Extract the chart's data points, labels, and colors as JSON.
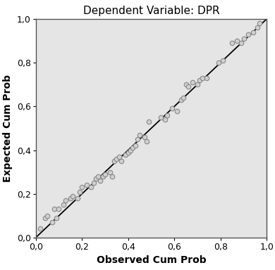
{
  "title": "Dependent Variable: DPR",
  "xlabel": "Observed Cum Prob",
  "ylabel": "Expected Cum Prob",
  "xlim": [
    0.0,
    1.0
  ],
  "ylim": [
    0.0,
    1.0
  ],
  "xticks": [
    0.0,
    0.2,
    0.4,
    0.6,
    0.8,
    1.0
  ],
  "yticks": [
    0.0,
    0.2,
    0.4,
    0.6,
    0.8,
    1.0
  ],
  "plot_bg_color": "#e5e5e5",
  "fig_bg_color": "#ffffff",
  "line_color": "#000000",
  "marker_facecolor": "#d0d0d0",
  "marker_edgecolor": "#888888",
  "spine_color": "#555555",
  "scatter_x": [
    0.02,
    0.04,
    0.05,
    0.07,
    0.08,
    0.09,
    0.1,
    0.12,
    0.13,
    0.15,
    0.16,
    0.18,
    0.19,
    0.2,
    0.22,
    0.24,
    0.25,
    0.26,
    0.27,
    0.28,
    0.29,
    0.3,
    0.32,
    0.33,
    0.34,
    0.35,
    0.36,
    0.37,
    0.39,
    0.4,
    0.41,
    0.42,
    0.43,
    0.44,
    0.45,
    0.47,
    0.48,
    0.49,
    0.54,
    0.56,
    0.57,
    0.59,
    0.61,
    0.63,
    0.64,
    0.65,
    0.66,
    0.68,
    0.7,
    0.71,
    0.72,
    0.74,
    0.79,
    0.81,
    0.85,
    0.87,
    0.89,
    0.9,
    0.92,
    0.94,
    0.96,
    0.97
  ],
  "scatter_y": [
    0.04,
    0.09,
    0.1,
    0.07,
    0.13,
    0.09,
    0.13,
    0.15,
    0.17,
    0.18,
    0.19,
    0.18,
    0.21,
    0.23,
    0.24,
    0.23,
    0.25,
    0.27,
    0.28,
    0.26,
    0.28,
    0.29,
    0.3,
    0.28,
    0.35,
    0.36,
    0.37,
    0.35,
    0.38,
    0.39,
    0.4,
    0.41,
    0.42,
    0.45,
    0.47,
    0.46,
    0.44,
    0.53,
    0.55,
    0.54,
    0.56,
    0.59,
    0.58,
    0.63,
    0.64,
    0.7,
    0.69,
    0.71,
    0.7,
    0.72,
    0.73,
    0.73,
    0.8,
    0.81,
    0.89,
    0.9,
    0.89,
    0.91,
    0.93,
    0.94,
    0.96,
    0.98
  ],
  "title_fontsize": 11,
  "label_fontsize": 10,
  "tick_fontsize": 9,
  "marker_size": 22,
  "marker_linewidth": 0.8,
  "line_width": 1.3
}
